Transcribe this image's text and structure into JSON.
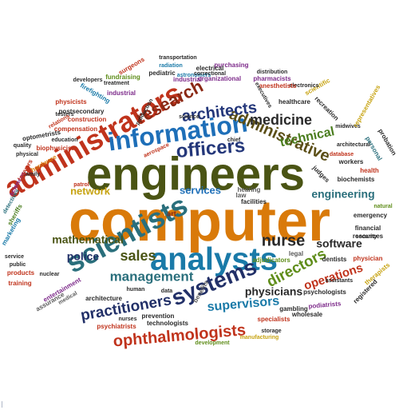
{
  "cloud": {
    "words": [
      {
        "text": "computer",
        "color": "#d97a0a"
      },
      {
        "text": "engineers",
        "color": "#4a5414"
      },
      {
        "text": "administrators",
        "color": "#c0331c"
      },
      {
        "text": "analysts",
        "color": "#1a7aa8"
      },
      {
        "text": "scientists",
        "color": "#2a6f7c"
      },
      {
        "text": "information",
        "color": "#1e6fb8"
      },
      {
        "text": "officers",
        "color": "#24377a"
      },
      {
        "text": "systems",
        "color": "#223068"
      },
      {
        "text": "administrative",
        "color": "#5b4e16"
      },
      {
        "text": "research",
        "color": "#8a2814"
      },
      {
        "text": "architects",
        "color": "#24377a"
      },
      {
        "text": "medicine",
        "color": "#2a2a2a"
      },
      {
        "text": "technical",
        "color": "#4a7d1e"
      },
      {
        "text": "management",
        "color": "#2a6f7c"
      },
      {
        "text": "practitioners",
        "color": "#223068"
      },
      {
        "text": "ophthalmologists",
        "color": "#c0331c"
      },
      {
        "text": "directors",
        "color": "#5f8d1a"
      },
      {
        "text": "operations",
        "color": "#c0331c"
      },
      {
        "text": "sales",
        "color": "#4a5414"
      },
      {
        "text": "nurse",
        "color": "#2a2a2a"
      },
      {
        "text": "mathematical",
        "color": "#4a5414"
      },
      {
        "text": "police",
        "color": "#223068"
      },
      {
        "text": "software",
        "color": "#2a2a2a"
      },
      {
        "text": "supervisors",
        "color": "#1a7aa8"
      },
      {
        "text": "physicians",
        "color": "#2a2a2a"
      },
      {
        "text": "engineering",
        "color": "#2a6f7c"
      },
      {
        "text": "services",
        "color": "#1e6fb8"
      },
      {
        "text": "network",
        "color": "#c7a311"
      },
      {
        "text": "hearing",
        "color": "#5a5a5a"
      },
      {
        "text": "law",
        "color": "#5a5a5a"
      },
      {
        "text": "art",
        "color": "#8a2814"
      },
      {
        "text": "aerospace",
        "color": "#c0331c"
      },
      {
        "text": "chief",
        "color": "#2a2a2a"
      },
      {
        "text": "patrol",
        "color": "#c0331c"
      },
      {
        "text": "family",
        "color": "#2a2a2a"
      },
      {
        "text": "sciences",
        "color": "#7d2a8a"
      },
      {
        "text": "lawyers",
        "color": "#c0331c"
      },
      {
        "text": "hardware",
        "color": "#d97a0a"
      },
      {
        "text": "detectives",
        "color": "#2a6f7c"
      },
      {
        "text": "sheriffs",
        "color": "#4a7d1e"
      },
      {
        "text": "marketing",
        "color": "#1a7aa8"
      },
      {
        "text": "service",
        "color": "#2a2a2a"
      },
      {
        "text": "public",
        "color": "#2a2a2a"
      },
      {
        "text": "products",
        "color": "#c0331c"
      },
      {
        "text": "training",
        "color": "#c0331c"
      },
      {
        "text": "nuclear",
        "color": "#2a2a2a"
      },
      {
        "text": "entertainment",
        "color": "#7d2a8a"
      },
      {
        "text": "medical",
        "color": "#5a5a5a"
      },
      {
        "text": "assurance",
        "color": "#5a5a5a"
      },
      {
        "text": "architecture",
        "color": "#2a2a2a"
      },
      {
        "text": "human",
        "color": "#2a2a2a"
      },
      {
        "text": "data",
        "color": "#2a2a2a"
      },
      {
        "text": "benefits",
        "color": "#5a5a5a"
      },
      {
        "text": "adjudicators",
        "color": "#5f8d1a"
      },
      {
        "text": "facilities",
        "color": "#2a2a2a"
      },
      {
        "text": "legal",
        "color": "#5a5a5a"
      },
      {
        "text": "specialists",
        "color": "#c0331c"
      },
      {
        "text": "gambling",
        "color": "#2a2a2a"
      },
      {
        "text": "psychiatrists",
        "color": "#c0331c"
      },
      {
        "text": "nurses",
        "color": "#2a2a2a"
      },
      {
        "text": "prevention",
        "color": "#2a2a2a"
      },
      {
        "text": "technologists",
        "color": "#2a2a2a"
      },
      {
        "text": "storage",
        "color": "#2a2a2a"
      },
      {
        "text": "wholesale",
        "color": "#2a2a2a"
      },
      {
        "text": "podiatrists",
        "color": "#7d2a8a"
      },
      {
        "text": "psychologists",
        "color": "#2a2a2a"
      },
      {
        "text": "assistants",
        "color": "#2a2a2a"
      },
      {
        "text": "registered",
        "color": "#2a2a2a"
      },
      {
        "text": "manufacturing",
        "color": "#c7a311"
      },
      {
        "text": "development",
        "color": "#5f8d1a"
      },
      {
        "text": "dentists",
        "color": "#2a2a2a"
      },
      {
        "text": "physician",
        "color": "#c0331c"
      },
      {
        "text": "therapists",
        "color": "#c7a311"
      },
      {
        "text": "financial",
        "color": "#2a2a2a"
      },
      {
        "text": "resources",
        "color": "#2a2a2a"
      },
      {
        "text": "security",
        "color": "#2a2a2a"
      },
      {
        "text": "emergency",
        "color": "#2a2a2a"
      },
      {
        "text": "natural",
        "color": "#5f8d1a"
      },
      {
        "text": "biochemists",
        "color": "#2a2a2a"
      },
      {
        "text": "judges",
        "color": "#2a2a2a"
      },
      {
        "text": "database",
        "color": "#c0331c"
      },
      {
        "text": "workers",
        "color": "#2a2a2a"
      },
      {
        "text": "health",
        "color": "#c0331c"
      },
      {
        "text": "personal",
        "color": "#2a6f7c"
      },
      {
        "text": "probation",
        "color": "#2a2a2a"
      },
      {
        "text": "architectural",
        "color": "#2a2a2a"
      },
      {
        "text": "midwives",
        "color": "#2a2a2a"
      },
      {
        "text": "representatives",
        "color": "#c7a311"
      },
      {
        "text": "recreation",
        "color": "#2a2a2a"
      },
      {
        "text": "healthcare",
        "color": "#2a2a2a"
      },
      {
        "text": "scientific",
        "color": "#c7a311"
      },
      {
        "text": "electronics",
        "color": "#2a2a2a"
      },
      {
        "text": "anesthetists",
        "color": "#c0331c"
      },
      {
        "text": "pharmacists",
        "color": "#7d2a8a"
      },
      {
        "text": "distribution",
        "color": "#2a2a2a"
      },
      {
        "text": "executives",
        "color": "#2a2a2a"
      },
      {
        "text": "purchasing",
        "color": "#7d2a8a"
      },
      {
        "text": "astronomers",
        "color": "#1a7aa8"
      },
      {
        "text": "electrical",
        "color": "#2a2a2a"
      },
      {
        "text": "correctional",
        "color": "#2a2a2a"
      },
      {
        "text": "industrial",
        "color": "#7d2a8a"
      },
      {
        "text": "organizational",
        "color": "#7d2a8a"
      },
      {
        "text": "transportation",
        "color": "#2a2a2a"
      },
      {
        "text": "radiation",
        "color": "#1a7aa8"
      },
      {
        "text": "pediatric",
        "color": "#2a2a2a"
      },
      {
        "text": "surgeons",
        "color": "#c0331c"
      },
      {
        "text": "fundraising",
        "color": "#5f8d1a"
      },
      {
        "text": "treatment",
        "color": "#2a2a2a"
      },
      {
        "text": "developers",
        "color": "#2a2a2a"
      },
      {
        "text": "industrial",
        "color": "#7d2a8a"
      },
      {
        "text": "firefighting",
        "color": "#1a7aa8"
      },
      {
        "text": "physicists",
        "color": "#c0331c"
      },
      {
        "text": "testers",
        "color": "#2a2a2a"
      },
      {
        "text": "relations",
        "color": "#c0331c"
      },
      {
        "text": "postsecondary",
        "color": "#2a2a2a"
      },
      {
        "text": "construction",
        "color": "#c0331c"
      },
      {
        "text": "compensation",
        "color": "#c0331c"
      },
      {
        "text": "optometrists",
        "color": "#2a2a2a"
      },
      {
        "text": "education",
        "color": "#2a2a2a"
      },
      {
        "text": "quality",
        "color": "#2a2a2a"
      },
      {
        "text": "biophysicists",
        "color": "#c0331c"
      },
      {
        "text": "physical",
        "color": "#2a2a2a"
      },
      {
        "text": "production",
        "color": "#2a2a2a"
      },
      {
        "text": "science",
        "color": "#2a2a2a"
      }
    ]
  }
}
